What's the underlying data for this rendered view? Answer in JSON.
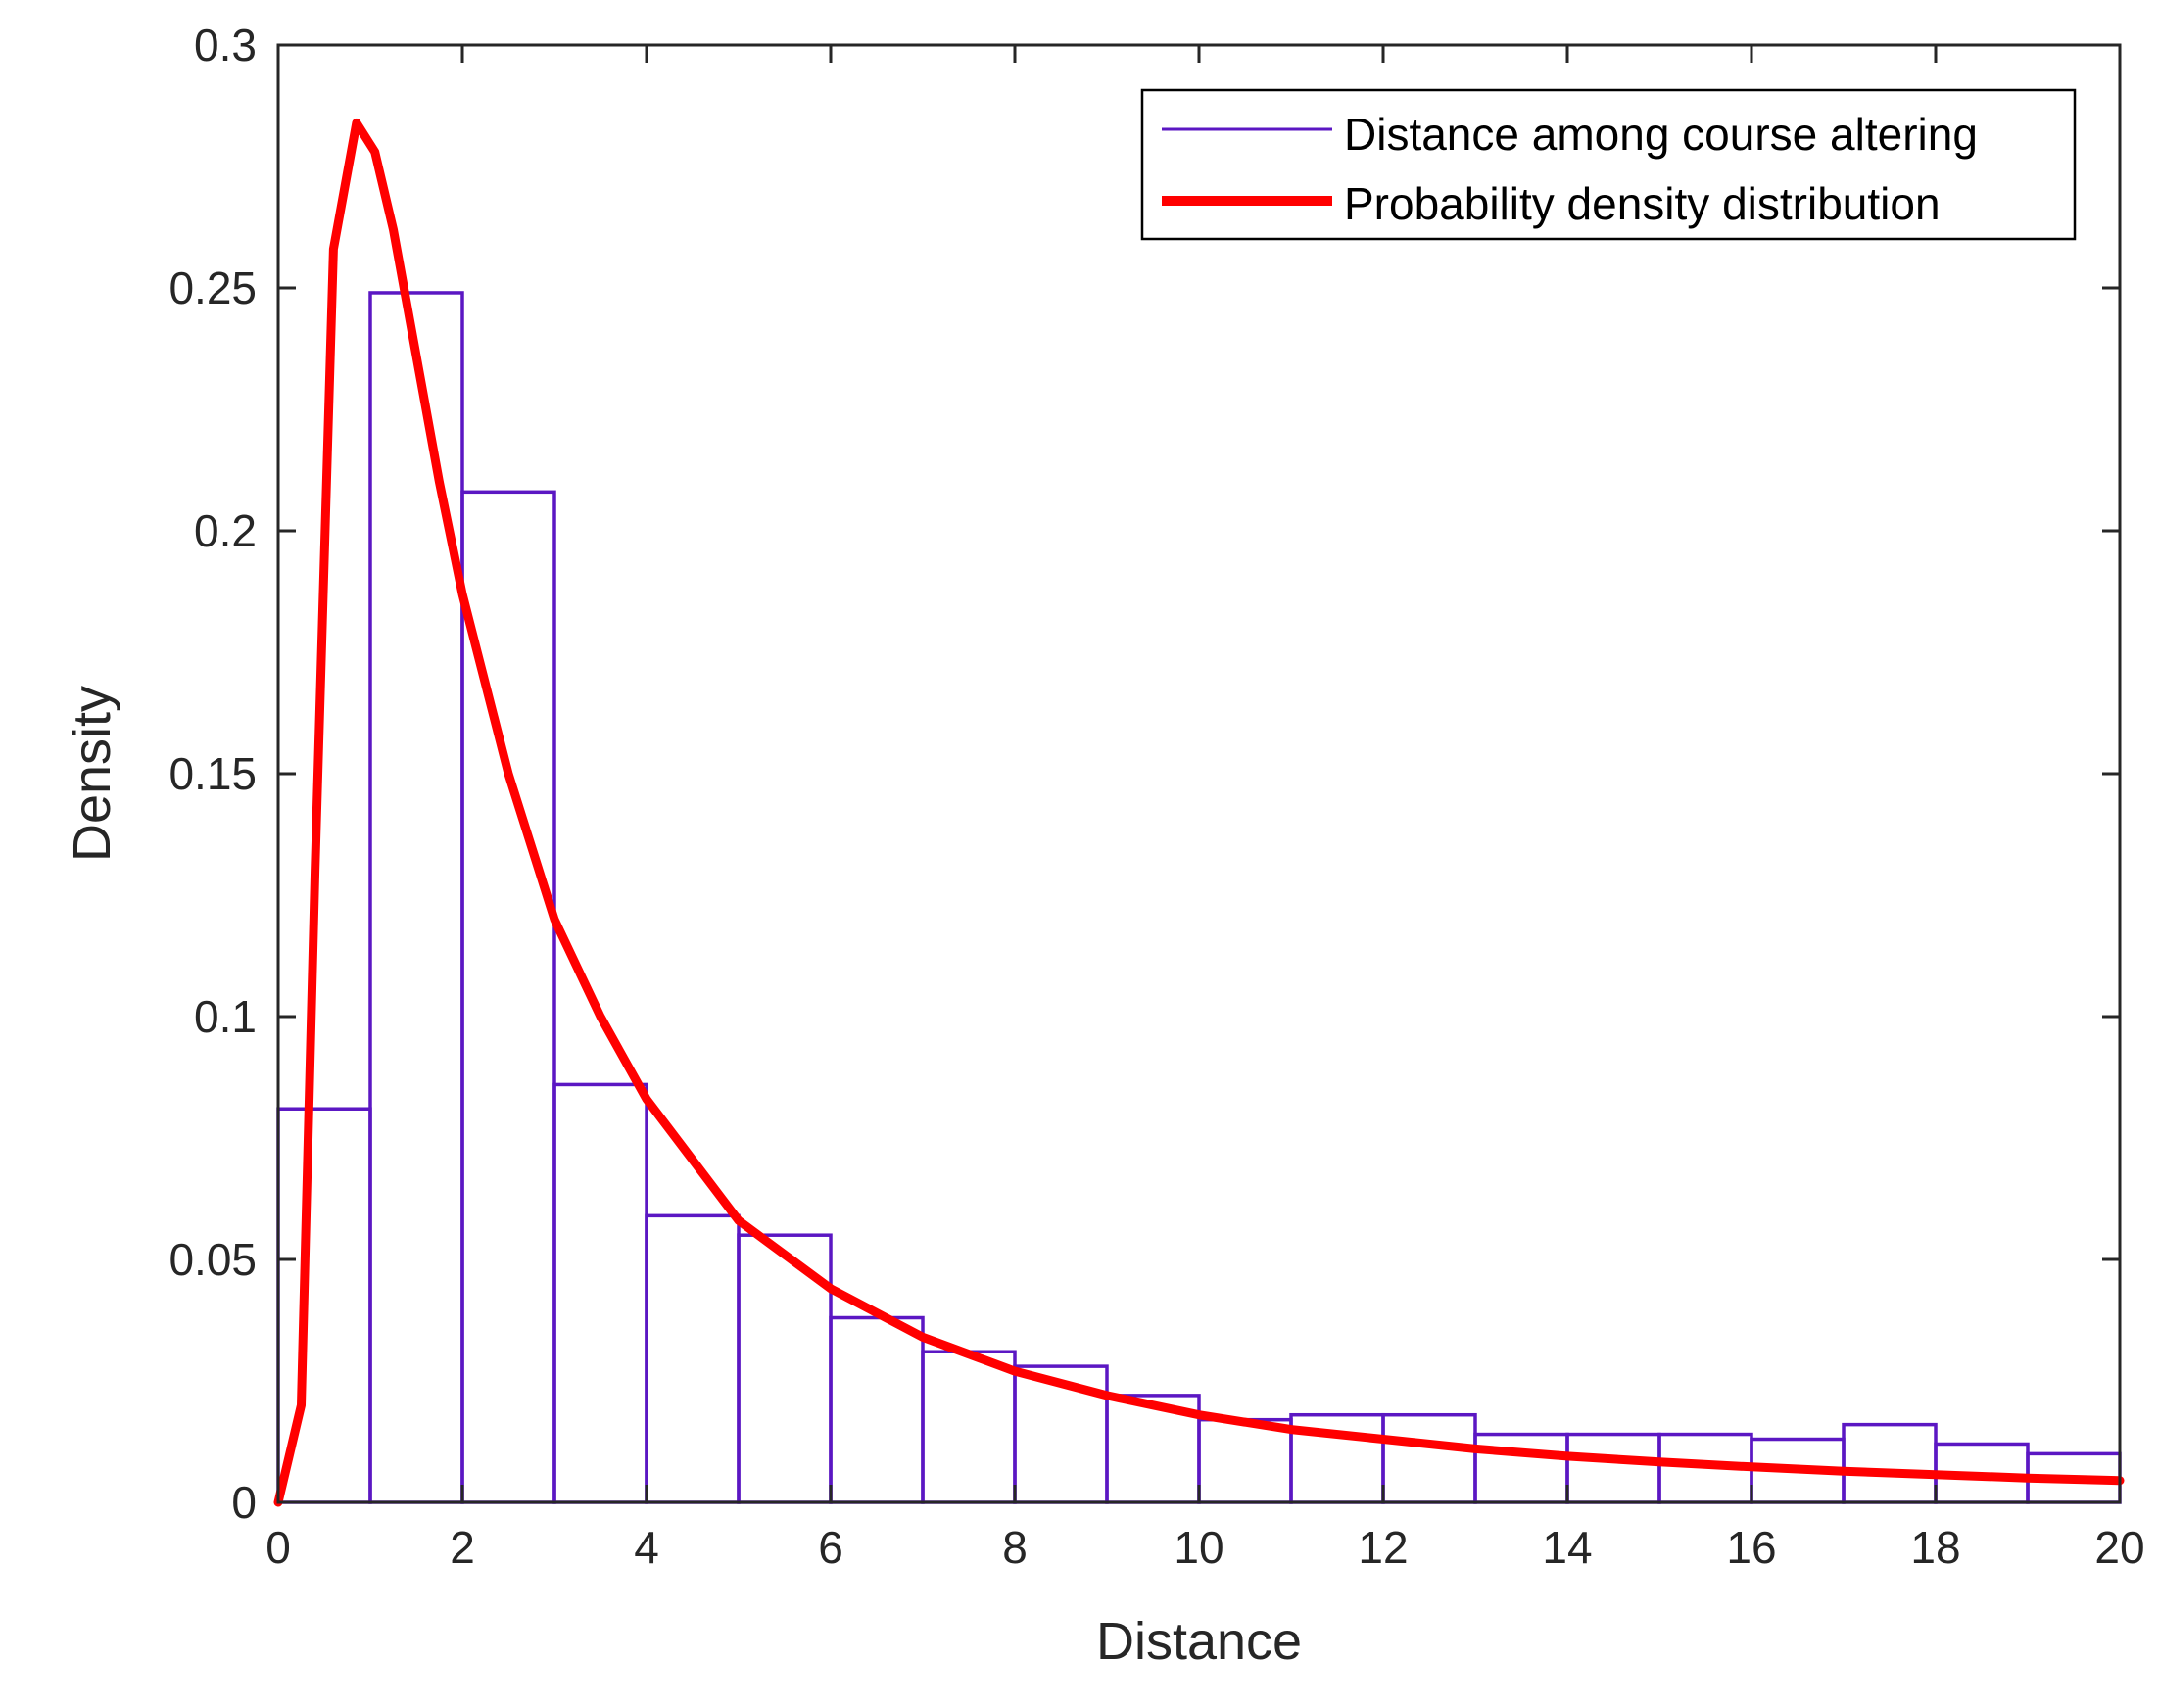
{
  "chart_data": {
    "type": "bar",
    "title": "",
    "xlabel": "Distance",
    "ylabel": "Density",
    "xlim": [
      0,
      20
    ],
    "ylim": [
      0,
      0.3
    ],
    "xticks": [
      "0",
      "2",
      "4",
      "6",
      "8",
      "10",
      "12",
      "14",
      "16",
      "18",
      "20"
    ],
    "yticks": [
      "0",
      "0.05",
      "0.1",
      "0.15",
      "0.2",
      "0.25",
      "0.3"
    ],
    "legend_position": "top-right",
    "grid": false,
    "colors": {
      "histogram": "#5b17c3",
      "curve": "#ff0000",
      "axes": "#262626"
    },
    "histogram": {
      "name": "Distance among course altering",
      "bin_edges": [
        0,
        1,
        2,
        3,
        4,
        5,
        6,
        7,
        8,
        9,
        10,
        11,
        12,
        13,
        14,
        15,
        16,
        17,
        18,
        19,
        20
      ],
      "values": [
        0.081,
        0.249,
        0.208,
        0.086,
        0.059,
        0.055,
        0.038,
        0.031,
        0.028,
        0.022,
        0.017,
        0.018,
        0.018,
        0.014,
        0.014,
        0.014,
        0.013,
        0.016,
        0.012,
        0.01
      ]
    },
    "curve": {
      "name": "Probability density distribution",
      "x": [
        0,
        0.25,
        0.4,
        0.6,
        0.85,
        1.05,
        1.25,
        1.5,
        1.75,
        2,
        2.5,
        3,
        3.5,
        4,
        5,
        6,
        7,
        8,
        9,
        10,
        11,
        12,
        13,
        14,
        15,
        16,
        17,
        18,
        19,
        20
      ],
      "y": [
        0,
        0.02,
        0.13,
        0.258,
        0.284,
        0.278,
        0.262,
        0.236,
        0.21,
        0.187,
        0.15,
        0.12,
        0.1,
        0.083,
        0.058,
        0.044,
        0.034,
        0.027,
        0.022,
        0.018,
        0.015,
        0.013,
        0.011,
        0.0095,
        0.0083,
        0.0073,
        0.0064,
        0.0057,
        0.005,
        0.0045
      ]
    }
  }
}
